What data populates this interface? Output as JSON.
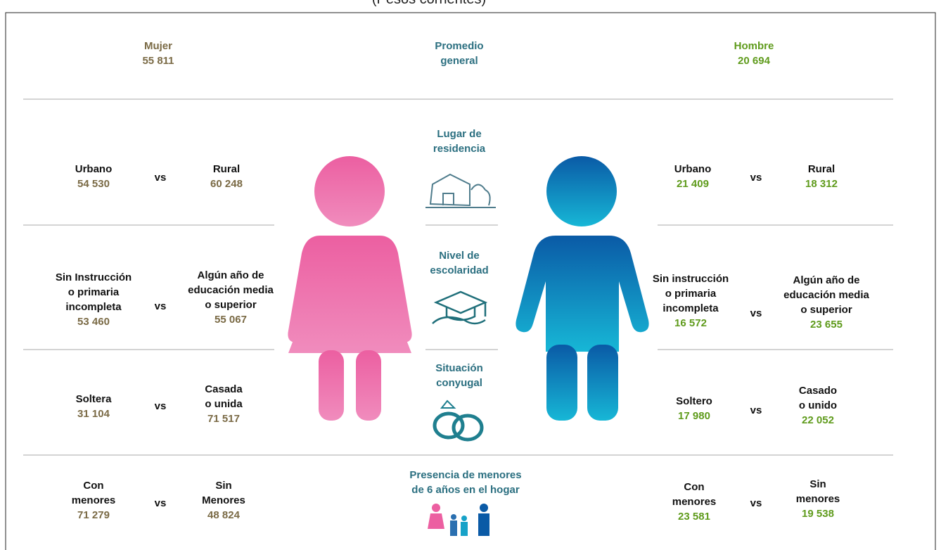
{
  "header": {
    "subtitle": "(Pesos corrientes)"
  },
  "summary": {
    "mujer": {
      "label": "Mujer",
      "value": "55 811"
    },
    "center": "Promedio\ngeneral",
    "hombre": {
      "label": "Hombre",
      "value": "20 694"
    }
  },
  "sections": [
    {
      "title": "Lugar de\nresidencia",
      "mujer": {
        "left": {
          "label": "Urbano",
          "value": "54 530"
        },
        "vs": "vs",
        "right": {
          "label": "Rural",
          "value": "60 248"
        }
      },
      "hombre": {
        "left": {
          "label": "Urbano",
          "value": "21 409"
        },
        "vs": "vs",
        "right": {
          "label": "Rural",
          "value": "18 312"
        }
      }
    },
    {
      "title": "Nivel de\nescolaridad",
      "mujer": {
        "left": {
          "label": "Sin Instrucción\no primaria\nincompleta",
          "value": "53 460"
        },
        "vs": "vs",
        "right": {
          "label": "Algún año de\neducación media\no superior",
          "value": "55 067"
        }
      },
      "hombre": {
        "left": {
          "label": "Sin instrucción\no primaria\nincompleta",
          "value": "16 572"
        },
        "vs": "vs",
        "right": {
          "label": "Algún año de\neducación media\no superior",
          "value": "23 655"
        }
      }
    },
    {
      "title": "Situación\nconyugal",
      "mujer": {
        "left": {
          "label": "Soltera",
          "value": "31 104"
        },
        "vs": "vs",
        "right": {
          "label": "Casada\no unida",
          "value": "71 517"
        }
      },
      "hombre": {
        "left": {
          "label": "Soltero",
          "value": "17 980"
        },
        "vs": "vs",
        "right": {
          "label": "Casado\no unido",
          "value": "22 052"
        }
      }
    },
    {
      "title": "Presencia de menores\nde 6 años en el hogar",
      "mujer": {
        "left": {
          "label": "Con\nmenores",
          "value": "71 279"
        },
        "vs": "vs",
        "right": {
          "label": "Sin\nMenores",
          "value": "48 824"
        }
      },
      "hombre": {
        "left": {
          "label": "Con\nmenores",
          "value": "23 581"
        },
        "vs": "vs",
        "right": {
          "label": "Sin\nmenores",
          "value": "19 538"
        }
      }
    }
  ]
}
